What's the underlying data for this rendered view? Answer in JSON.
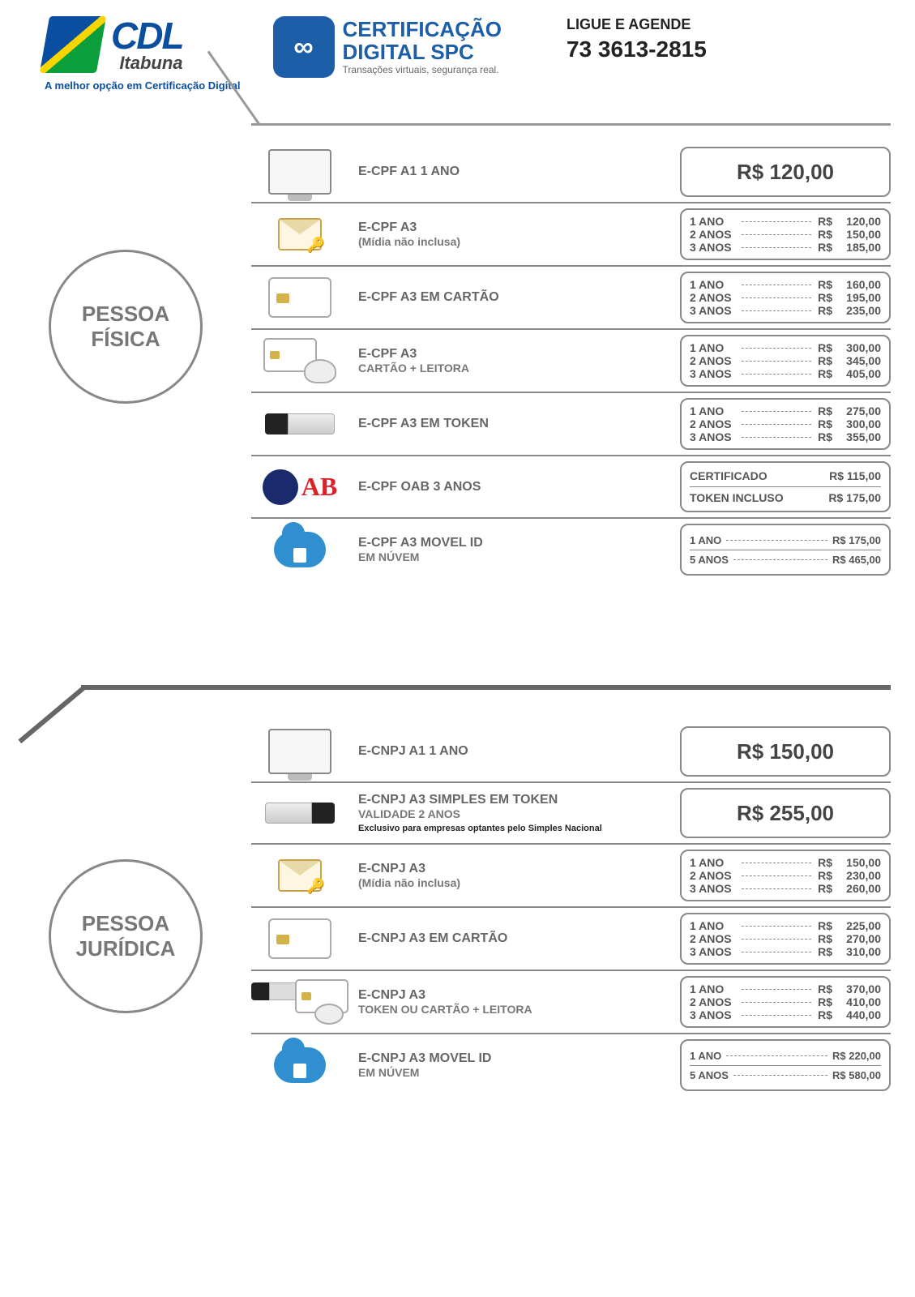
{
  "header": {
    "cdl": {
      "name": "CDL",
      "city": "Itabuna",
      "tag": "A melhor opção em Certificação Digital"
    },
    "cert": {
      "line1": "CERTIFICAÇÃO",
      "line2": "DIGITAL SPC",
      "line3": "Transações virtuais, segurança real."
    },
    "contact": {
      "line1": "LIGUE E AGENDE",
      "phone": "73 3613-2815"
    }
  },
  "sections": {
    "pf": {
      "title": "PESSOA\nFÍSICA"
    },
    "pj": {
      "title": "PESSOA\nJURÍDICA"
    }
  },
  "currency": "R$",
  "pf_rows": [
    {
      "icon": "monitor",
      "label": "E-CPF A1 1 ANO",
      "price_single": "120,00"
    },
    {
      "icon": "env",
      "label": "E-CPF A3",
      "sub": "(Mídia não inclusa)",
      "prices": [
        [
          "1 ANO",
          "120,00"
        ],
        [
          "2 ANOS",
          "150,00"
        ],
        [
          "3 ANOS",
          "185,00"
        ]
      ]
    },
    {
      "icon": "card",
      "label": "E-CPF A3 EM CARTÃO",
      "prices": [
        [
          "1 ANO",
          "160,00"
        ],
        [
          "2 ANOS",
          "195,00"
        ],
        [
          "3 ANOS",
          "235,00"
        ]
      ]
    },
    {
      "icon": "cardreader",
      "label": "E-CPF A3",
      "sub": "CARTÃO + LEITORA",
      "prices": [
        [
          "1 ANO",
          "300,00"
        ],
        [
          "2 ANOS",
          "345,00"
        ],
        [
          "3 ANOS",
          "405,00"
        ]
      ]
    },
    {
      "icon": "token",
      "label": "E-CPF A3 EM TOKEN",
      "prices": [
        [
          "1 ANO",
          "275,00"
        ],
        [
          "2 ANOS",
          "300,00"
        ],
        [
          "3 ANOS",
          "355,00"
        ]
      ]
    },
    {
      "icon": "oab",
      "label": "E-CPF OAB 3 ANOS",
      "split": [
        [
          "CERTIFICADO",
          "115,00"
        ],
        [
          "TOKEN INCLUSO",
          "175,00"
        ]
      ]
    },
    {
      "icon": "cloud",
      "label": "E-CPF A3 MOVEL ID",
      "sub": "EM NÚVEM",
      "two": [
        [
          "1 ANO",
          "175,00"
        ],
        [
          "5 ANOS",
          "465,00"
        ]
      ]
    }
  ],
  "pj_rows": [
    {
      "icon": "monitor",
      "label": "E-CNPJ A1   1 ANO",
      "price_single": "150,00"
    },
    {
      "icon": "token-rev",
      "label": "E-CNPJ A3 SIMPLES EM TOKEN",
      "sub": "VALIDADE 2 ANOS",
      "note": "Exclusivo para empresas optantes pelo Simples Nacional",
      "price_single": "255,00"
    },
    {
      "icon": "env",
      "label": "E-CNPJ A3",
      "sub": "(Mídia não inclusa)",
      "prices": [
        [
          "1 ANO",
          "150,00"
        ],
        [
          "2 ANOS",
          "230,00"
        ],
        [
          "3 ANOS",
          "260,00"
        ]
      ]
    },
    {
      "icon": "card",
      "label": "E-CNPJ A3 EM CARTÃO",
      "prices": [
        [
          "1 ANO",
          "225,00"
        ],
        [
          "2 ANOS",
          "270,00"
        ],
        [
          "3 ANOS",
          "310,00"
        ]
      ]
    },
    {
      "icon": "combo",
      "label": "E-CNPJ A3",
      "sub": "TOKEN OU CARTÃO + LEITORA",
      "prices": [
        [
          "1 ANO",
          "370,00"
        ],
        [
          "2 ANOS",
          "410,00"
        ],
        [
          "3 ANOS",
          "440,00"
        ]
      ]
    },
    {
      "icon": "cloud",
      "label": "E-CNPJ A3 MOVEL ID",
      "sub": "EM NÚVEM",
      "two": [
        [
          "1 ANO",
          "220,00"
        ],
        [
          "5 ANOS",
          "580,00"
        ]
      ]
    }
  ],
  "colors": {
    "brand_blue": "#1d5ea8",
    "oab_red": "#d8232a",
    "cloud": "#2f8fcf",
    "rule": "#888888",
    "text_muted": "#666666",
    "divider": "#666666"
  }
}
